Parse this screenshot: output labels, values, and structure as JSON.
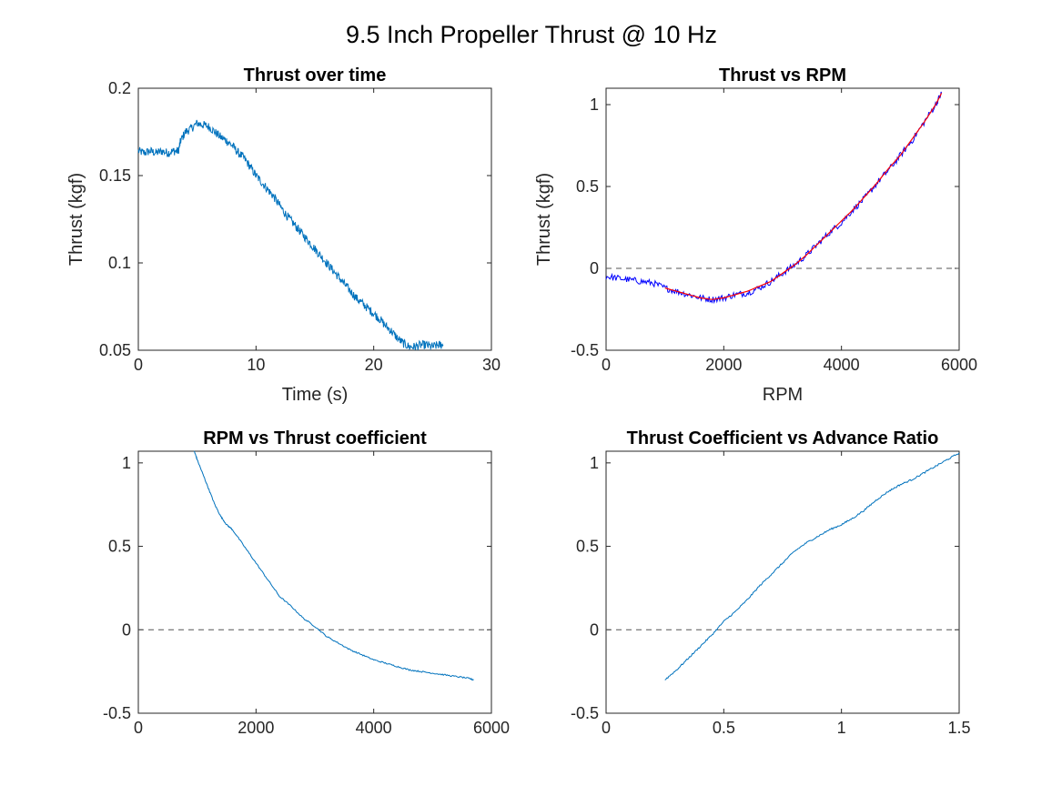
{
  "figure": {
    "title": "9.5 Inch Propeller Thrust @ 10 Hz",
    "series_color": "#0072BD",
    "raw_color": "#0000FF",
    "fit_color": "#FF0000",
    "zero_line_color": "#555555"
  },
  "chart_data": [
    {
      "type": "line",
      "title": "Thrust over time",
      "xlabel": "Time (s)",
      "ylabel": "Thrust (kgf)",
      "xlim": [
        0,
        30
      ],
      "ylim": [
        0.05,
        0.2
      ],
      "xticks": [
        0,
        10,
        20,
        30
      ],
      "yticks": [
        0.05,
        0.1,
        0.15,
        0.2
      ],
      "xtick_labels": [
        "0",
        "10",
        "20",
        "30"
      ],
      "ytick_labels": [
        "0.05",
        "0.1",
        "0.15",
        "0.2"
      ],
      "zero_line": false,
      "series": [
        {
          "x": [
            0,
            0.5,
            1,
            1.5,
            2,
            2.5,
            3,
            3.4,
            3.6,
            4,
            4.5,
            5,
            5.5,
            6,
            6.5,
            7,
            7.5,
            8,
            8.5,
            9,
            9.5,
            10,
            10.5,
            11,
            11.5,
            12,
            12.5,
            13,
            13.5,
            14,
            14.5,
            15,
            15.5,
            16,
            16.5,
            17,
            17.5,
            18,
            18.5,
            19,
            19.5,
            20,
            20.5,
            21,
            21.5,
            22,
            22.5,
            23,
            23.5,
            24,
            24.5,
            25,
            25.5,
            25.9
          ],
          "y": [
            0.164,
            0.163,
            0.164,
            0.163,
            0.164,
            0.163,
            0.164,
            0.164,
            0.17,
            0.175,
            0.177,
            0.18,
            0.179,
            0.178,
            0.175,
            0.172,
            0.17,
            0.167,
            0.163,
            0.16,
            0.155,
            0.15,
            0.146,
            0.142,
            0.138,
            0.133,
            0.128,
            0.124,
            0.12,
            0.116,
            0.112,
            0.108,
            0.104,
            0.1,
            0.096,
            0.092,
            0.088,
            0.084,
            0.08,
            0.077,
            0.074,
            0.071,
            0.068,
            0.064,
            0.061,
            0.057,
            0.054,
            0.052,
            0.052,
            0.053,
            0.053,
            0.052,
            0.053,
            0.053
          ],
          "noise": 0.0025
        }
      ]
    },
    {
      "type": "line",
      "title": "Thrust vs RPM",
      "xlabel": "RPM",
      "ylabel": "Thrust (kgf)",
      "xlim": [
        0,
        6000
      ],
      "ylim": [
        -0.5,
        1.1
      ],
      "xticks": [
        0,
        2000,
        4000,
        6000
      ],
      "yticks": [
        -0.5,
        0,
        0.5,
        1
      ],
      "xtick_labels": [
        "0",
        "2000",
        "4000",
        "6000"
      ],
      "ytick_labels": [
        "-0.5",
        "0",
        "0.5",
        "1"
      ],
      "zero_line": true,
      "series": [
        {
          "role": "raw",
          "x": [
            0,
            200,
            400,
            600,
            800,
            1000,
            1200,
            1400,
            1600,
            1800,
            2000,
            2200,
            2400,
            2600,
            2800,
            3000,
            3200,
            3400,
            3600,
            3800,
            4000,
            4200,
            4400,
            4600,
            4800,
            5000,
            5200,
            5400,
            5600,
            5700
          ],
          "y": [
            -0.05,
            -0.06,
            -0.07,
            -0.08,
            -0.09,
            -0.12,
            -0.14,
            -0.16,
            -0.18,
            -0.19,
            -0.18,
            -0.16,
            -0.15,
            -0.12,
            -0.08,
            -0.03,
            0.02,
            0.08,
            0.15,
            0.22,
            0.28,
            0.36,
            0.43,
            0.52,
            0.6,
            0.69,
            0.78,
            0.89,
            1.0,
            1.07
          ],
          "noise": 0.02
        },
        {
          "role": "fit",
          "x": [
            1000,
            1200,
            1400,
            1600,
            1800,
            2000,
            2200,
            2400,
            2600,
            2800,
            3000,
            3200,
            3400,
            3600,
            3800,
            4000,
            4200,
            4400,
            4600,
            4800,
            5000,
            5200,
            5400,
            5600,
            5700
          ],
          "y": [
            -0.12,
            -0.14,
            -0.16,
            -0.18,
            -0.19,
            -0.18,
            -0.16,
            -0.14,
            -0.11,
            -0.08,
            -0.03,
            0.02,
            0.08,
            0.15,
            0.22,
            0.29,
            0.36,
            0.44,
            0.52,
            0.61,
            0.69,
            0.79,
            0.89,
            1.0,
            1.07
          ]
        }
      ]
    },
    {
      "type": "line",
      "title": "RPM vs Thrust coefficient",
      "xlabel": "",
      "ylabel": "",
      "xlim": [
        0,
        6000
      ],
      "ylim": [
        -0.5,
        1.07
      ],
      "xticks": [
        0,
        2000,
        4000,
        6000
      ],
      "yticks": [
        -0.5,
        0,
        0.5,
        1
      ],
      "xtick_labels": [
        "0",
        "2000",
        "4000",
        "6000"
      ],
      "ytick_labels": [
        "-0.5",
        "0",
        "0.5",
        "1"
      ],
      "zero_line": true,
      "series": [
        {
          "x": [
            950,
            1000,
            1100,
            1200,
            1300,
            1400,
            1500,
            1600,
            1800,
            2000,
            2200,
            2400,
            2600,
            2800,
            3000,
            3200,
            3400,
            3600,
            3800,
            4000,
            4200,
            4400,
            4600,
            4800,
            5000,
            5200,
            5400,
            5600,
            5700
          ],
          "y": [
            1.07,
            1.02,
            0.93,
            0.84,
            0.75,
            0.68,
            0.63,
            0.6,
            0.5,
            0.4,
            0.3,
            0.2,
            0.14,
            0.07,
            0.02,
            -0.04,
            -0.08,
            -0.12,
            -0.15,
            -0.18,
            -0.2,
            -0.22,
            -0.24,
            -0.25,
            -0.26,
            -0.27,
            -0.28,
            -0.29,
            -0.3
          ],
          "noise": 0.004
        }
      ]
    },
    {
      "type": "line",
      "title": "Thrust Coefficient vs Advance Ratio",
      "xlabel": "",
      "ylabel": "",
      "xlim": [
        0,
        1.5
      ],
      "ylim": [
        -0.5,
        1.07
      ],
      "xticks": [
        0,
        0.5,
        1,
        1.5
      ],
      "yticks": [
        -0.5,
        0,
        0.5,
        1
      ],
      "xtick_labels": [
        "0",
        "0.5",
        "1",
        "1.5"
      ],
      "ytick_labels": [
        "-0.5",
        "0",
        "0.5",
        "1"
      ],
      "zero_line": true,
      "series": [
        {
          "x": [
            0.25,
            0.3,
            0.35,
            0.4,
            0.45,
            0.5,
            0.55,
            0.6,
            0.65,
            0.7,
            0.75,
            0.8,
            0.85,
            0.9,
            0.95,
            1.0,
            1.05,
            1.1,
            1.15,
            1.2,
            1.25,
            1.3,
            1.35,
            1.4,
            1.45,
            1.5
          ],
          "y": [
            -0.3,
            -0.24,
            -0.17,
            -0.1,
            -0.03,
            0.05,
            0.11,
            0.18,
            0.26,
            0.33,
            0.4,
            0.47,
            0.52,
            0.56,
            0.6,
            0.63,
            0.67,
            0.72,
            0.78,
            0.83,
            0.87,
            0.9,
            0.94,
            0.98,
            1.02,
            1.06
          ],
          "noise": 0.005
        }
      ]
    }
  ]
}
